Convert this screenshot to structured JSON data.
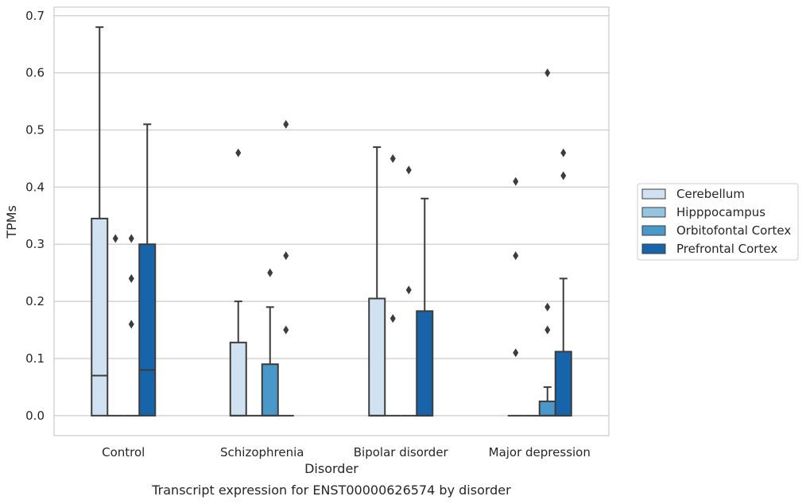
{
  "chart_data": {
    "type": "box",
    "title": "",
    "caption": "Transcript expression for ENST00000626574 by disorder",
    "xlabel": "Disorder",
    "ylabel": "TPMs",
    "ylim": [
      -0.035,
      0.715
    ],
    "yticks": [
      0.0,
      0.1,
      0.2,
      0.3,
      0.4,
      0.5,
      0.6,
      0.7
    ],
    "ytick_labels": [
      "0.0",
      "0.1",
      "0.2",
      "0.3",
      "0.4",
      "0.5",
      "0.6",
      "0.7"
    ],
    "grid": "horizontal",
    "legend_position": "right",
    "categories": [
      "Control",
      "Schizophrenia",
      "Bipolar disorder",
      "Major depression"
    ],
    "series": [
      {
        "name": "Cerebellum",
        "color": "#d0e1f2",
        "boxes": [
          {
            "whisker_low": 0.0,
            "q1": 0.0,
            "median": 0.07,
            "q3": 0.345,
            "whisker_high": 0.68,
            "outliers": []
          },
          {
            "whisker_low": 0.0,
            "q1": 0.0,
            "median": 0.0,
            "q3": 0.128,
            "whisker_high": 0.2,
            "outliers": [
              0.46
            ]
          },
          {
            "whisker_low": 0.0,
            "q1": 0.0,
            "median": 0.0,
            "q3": 0.205,
            "whisker_high": 0.47,
            "outliers": []
          },
          {
            "whisker_low": 0.0,
            "q1": 0.0,
            "median": 0.0,
            "q3": 0.0,
            "whisker_high": 0.0,
            "outliers": [
              0.41,
              0.28,
              0.11
            ]
          }
        ]
      },
      {
        "name": "Hipppocampus",
        "color": "#94c4df",
        "boxes": [
          {
            "whisker_low": 0.0,
            "q1": 0.0,
            "median": 0.0,
            "q3": 0.0,
            "whisker_high": 0.0,
            "outliers": [
              0.31
            ]
          },
          {
            "whisker_low": 0.0,
            "q1": 0.0,
            "median": 0.0,
            "q3": 0.0,
            "whisker_high": 0.0,
            "outliers": []
          },
          {
            "whisker_low": 0.0,
            "q1": 0.0,
            "median": 0.0,
            "q3": 0.0,
            "whisker_high": 0.0,
            "outliers": [
              0.45,
              0.17
            ]
          },
          {
            "whisker_low": 0.0,
            "q1": 0.0,
            "median": 0.0,
            "q3": 0.0,
            "whisker_high": 0.0,
            "outliers": []
          }
        ]
      },
      {
        "name": "Orbitofontal Cortex",
        "color": "#4a98c9",
        "boxes": [
          {
            "whisker_low": 0.0,
            "q1": 0.0,
            "median": 0.0,
            "q3": 0.0,
            "whisker_high": 0.0,
            "outliers": [
              0.31,
              0.24,
              0.16
            ]
          },
          {
            "whisker_low": 0.0,
            "q1": 0.0,
            "median": 0.0,
            "q3": 0.09,
            "whisker_high": 0.19,
            "outliers": [
              0.25
            ]
          },
          {
            "whisker_low": 0.0,
            "q1": 0.0,
            "median": 0.0,
            "q3": 0.0,
            "whisker_high": 0.0,
            "outliers": [
              0.43,
              0.22
            ]
          },
          {
            "whisker_low": 0.0,
            "q1": 0.0,
            "median": 0.0,
            "q3": 0.025,
            "whisker_high": 0.05,
            "outliers": [
              0.6,
              0.19,
              0.15
            ]
          }
        ]
      },
      {
        "name": "Prefrontal Cortex",
        "color": "#1764ab",
        "boxes": [
          {
            "whisker_low": 0.0,
            "q1": 0.0,
            "median": 0.08,
            "q3": 0.3,
            "whisker_high": 0.51,
            "outliers": []
          },
          {
            "whisker_low": 0.0,
            "q1": 0.0,
            "median": 0.0,
            "q3": 0.0,
            "whisker_high": 0.0,
            "outliers": [
              0.51,
              0.28,
              0.15
            ]
          },
          {
            "whisker_low": 0.0,
            "q1": 0.0,
            "median": 0.0,
            "q3": 0.183,
            "whisker_high": 0.38,
            "outliers": []
          },
          {
            "whisker_low": 0.0,
            "q1": 0.0,
            "median": 0.0,
            "q3": 0.112,
            "whisker_high": 0.24,
            "outliers": [
              0.46,
              0.42
            ]
          }
        ]
      }
    ]
  }
}
